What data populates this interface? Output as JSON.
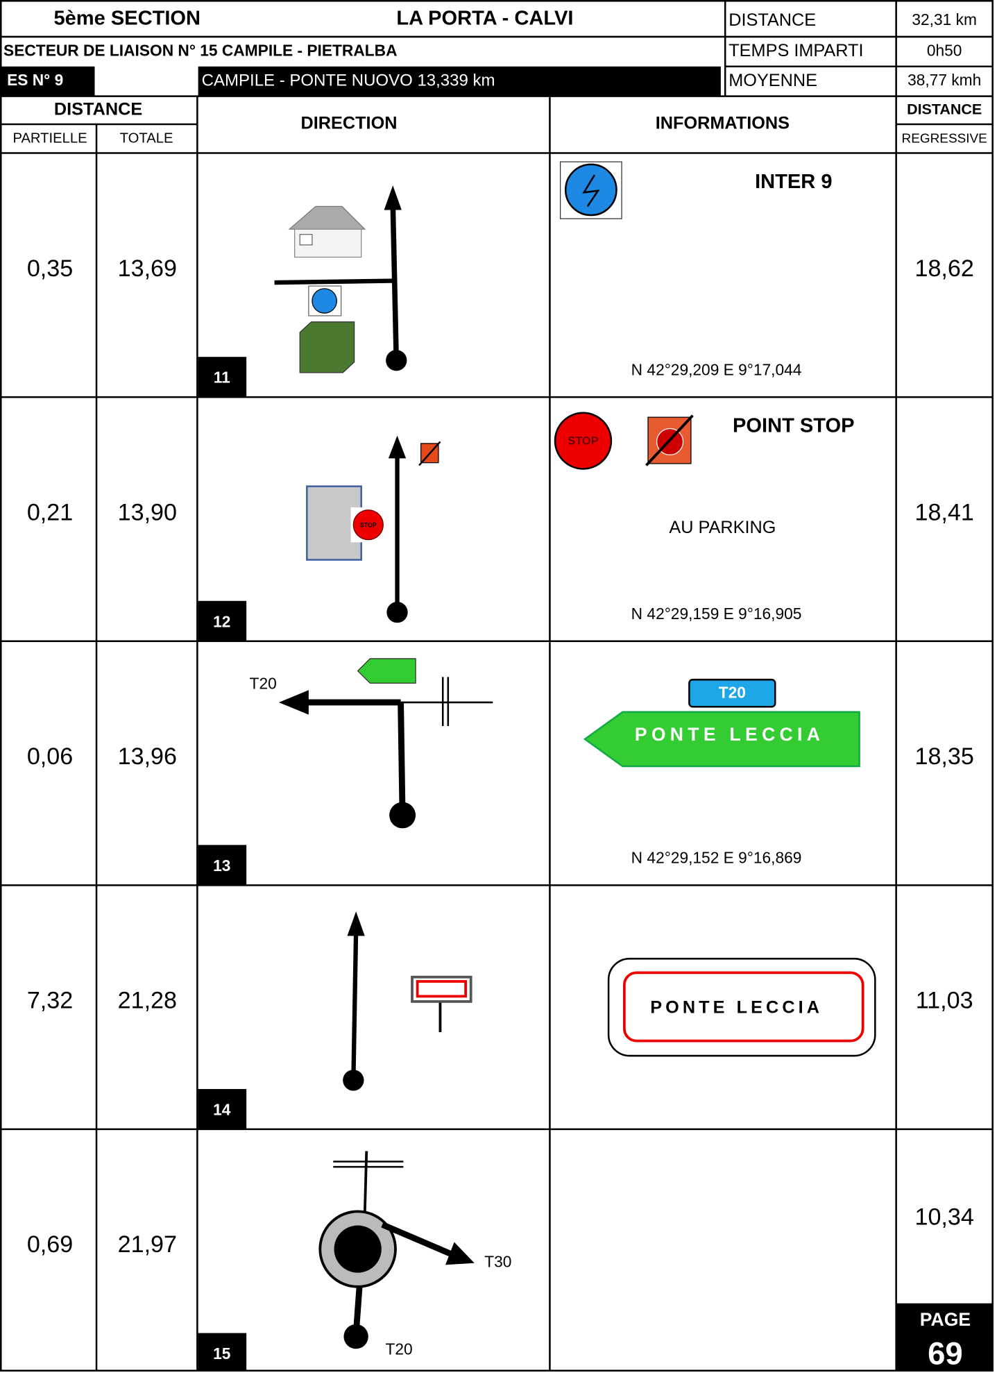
{
  "header": {
    "section": "5ème SECTION",
    "title": "LA PORTA - CALVI",
    "liaison": "SECTEUR DE LIAISON N° 15  CAMPILE - PIETRALBA",
    "es": "ES N° 9",
    "es_route": "CAMPILE - PONTE NUOVO 13,339 km",
    "stats": [
      {
        "label": "DISTANCE",
        "value": "32,31 km"
      },
      {
        "label": "TEMPS IMPARTI",
        "value": "0h50"
      },
      {
        "label": "MOYENNE",
        "value": "38,77 kmh"
      }
    ]
  },
  "columns": {
    "distance": "DISTANCE",
    "partielle": "PARTIELLE",
    "totale": "TOTALE",
    "direction": "DIRECTION",
    "informations": "INFORMATIONS",
    "distance_reg": "DISTANCE",
    "regressive": "REGRESSIVE"
  },
  "rows": [
    {
      "partielle": "0,35",
      "totale": "13,69",
      "regressive": "18,62",
      "number": "11",
      "info_title": "INTER 9",
      "coords": "N 42°29,209  E 9°17,044"
    },
    {
      "partielle": "0,21",
      "totale": "13,90",
      "regressive": "18,41",
      "number": "12",
      "info_title": "POINT STOP",
      "info_text": "AU PARKING",
      "sign": "STOP",
      "coords": "N 42°29,159  E 9°16,905"
    },
    {
      "partielle": "0,06",
      "totale": "13,96",
      "regressive": "18,35",
      "number": "13",
      "road": "T20",
      "sign_road": "T20",
      "sign": "PONTE LECCIA",
      "coords": "N 42°29,152  E 9°16,869"
    },
    {
      "partielle": "7,32",
      "totale": "21,28",
      "regressive": "11,03",
      "number": "14",
      "sign": "PONTE LECCIA"
    },
    {
      "partielle": "0,69",
      "totale": "21,97",
      "regressive": "10,34",
      "number": "15",
      "exit": "T30",
      "road": "T20"
    }
  ],
  "page": {
    "label": "PAGE",
    "number": "69"
  }
}
